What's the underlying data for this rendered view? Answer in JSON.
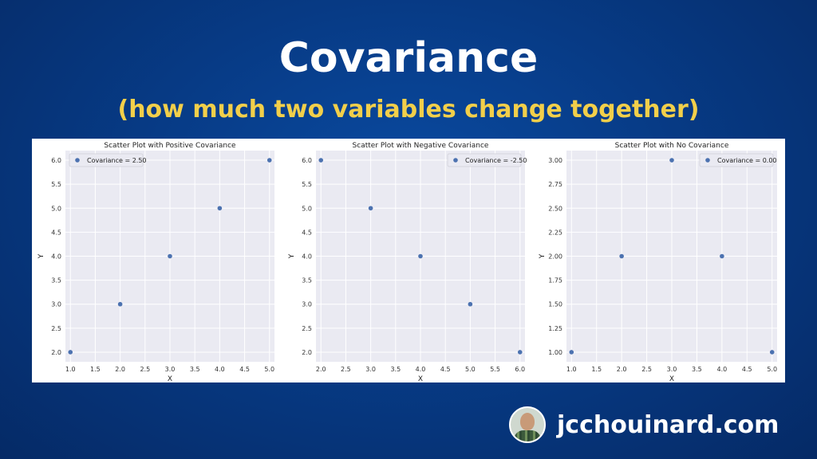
{
  "header": {
    "title": "Covariance",
    "subtitle": "(how much two variables change together)"
  },
  "brand": {
    "site": "jcchouinard.com"
  },
  "colors": {
    "background": "#073b86",
    "title": "#ffffff",
    "subtitle": "#f2cf4a",
    "plot_bg": "#eaeaf2",
    "point": "#4c72b0"
  },
  "chart_data": [
    {
      "type": "scatter",
      "title": "Scatter Plot with Positive Covariance",
      "xlabel": "X",
      "ylabel": "Y",
      "x": [
        1,
        2,
        3,
        4,
        5
      ],
      "y": [
        2,
        3,
        4,
        5,
        6
      ],
      "xlim": [
        0.9,
        5.1
      ],
      "ylim": [
        1.8,
        6.2
      ],
      "xticks": [
        "1.0",
        "1.5",
        "2.0",
        "2.5",
        "3.0",
        "3.5",
        "4.0",
        "4.5",
        "5.0"
      ],
      "yticks": [
        "2.0",
        "2.5",
        "3.0",
        "3.5",
        "4.0",
        "4.5",
        "5.0",
        "5.5",
        "6.0"
      ],
      "legend": "Covariance = 2.50",
      "legend_loc": "upper left",
      "grid": true
    },
    {
      "type": "scatter",
      "title": "Scatter Plot with Negative Covariance",
      "xlabel": "X",
      "ylabel": "Y",
      "x": [
        2,
        3,
        4,
        5,
        6
      ],
      "y": [
        6,
        5,
        4,
        3,
        2
      ],
      "xlim": [
        1.9,
        6.1
      ],
      "ylim": [
        1.8,
        6.2
      ],
      "xticks": [
        "2.0",
        "2.5",
        "3.0",
        "3.5",
        "4.0",
        "4.5",
        "5.0",
        "5.5",
        "6.0"
      ],
      "yticks": [
        "2.0",
        "2.5",
        "3.0",
        "3.5",
        "4.0",
        "4.5",
        "5.0",
        "5.5",
        "6.0"
      ],
      "legend": "Covariance = -2.50",
      "legend_loc": "upper right",
      "grid": true
    },
    {
      "type": "scatter",
      "title": "Scatter Plot with No Covariance",
      "xlabel": "X",
      "ylabel": "Y",
      "x": [
        1,
        2,
        3,
        4,
        5
      ],
      "y": [
        1,
        2,
        3,
        2,
        1
      ],
      "xlim": [
        0.9,
        5.1
      ],
      "ylim": [
        0.9,
        3.1
      ],
      "xticks": [
        "1.0",
        "1.5",
        "2.0",
        "2.5",
        "3.0",
        "3.5",
        "4.0",
        "4.5",
        "5.0"
      ],
      "yticks": [
        "1.00",
        "1.25",
        "1.50",
        "1.75",
        "2.00",
        "2.25",
        "2.50",
        "2.75",
        "3.00"
      ],
      "legend": "Covariance = 0.00",
      "legend_loc": "upper right",
      "grid": true
    }
  ]
}
